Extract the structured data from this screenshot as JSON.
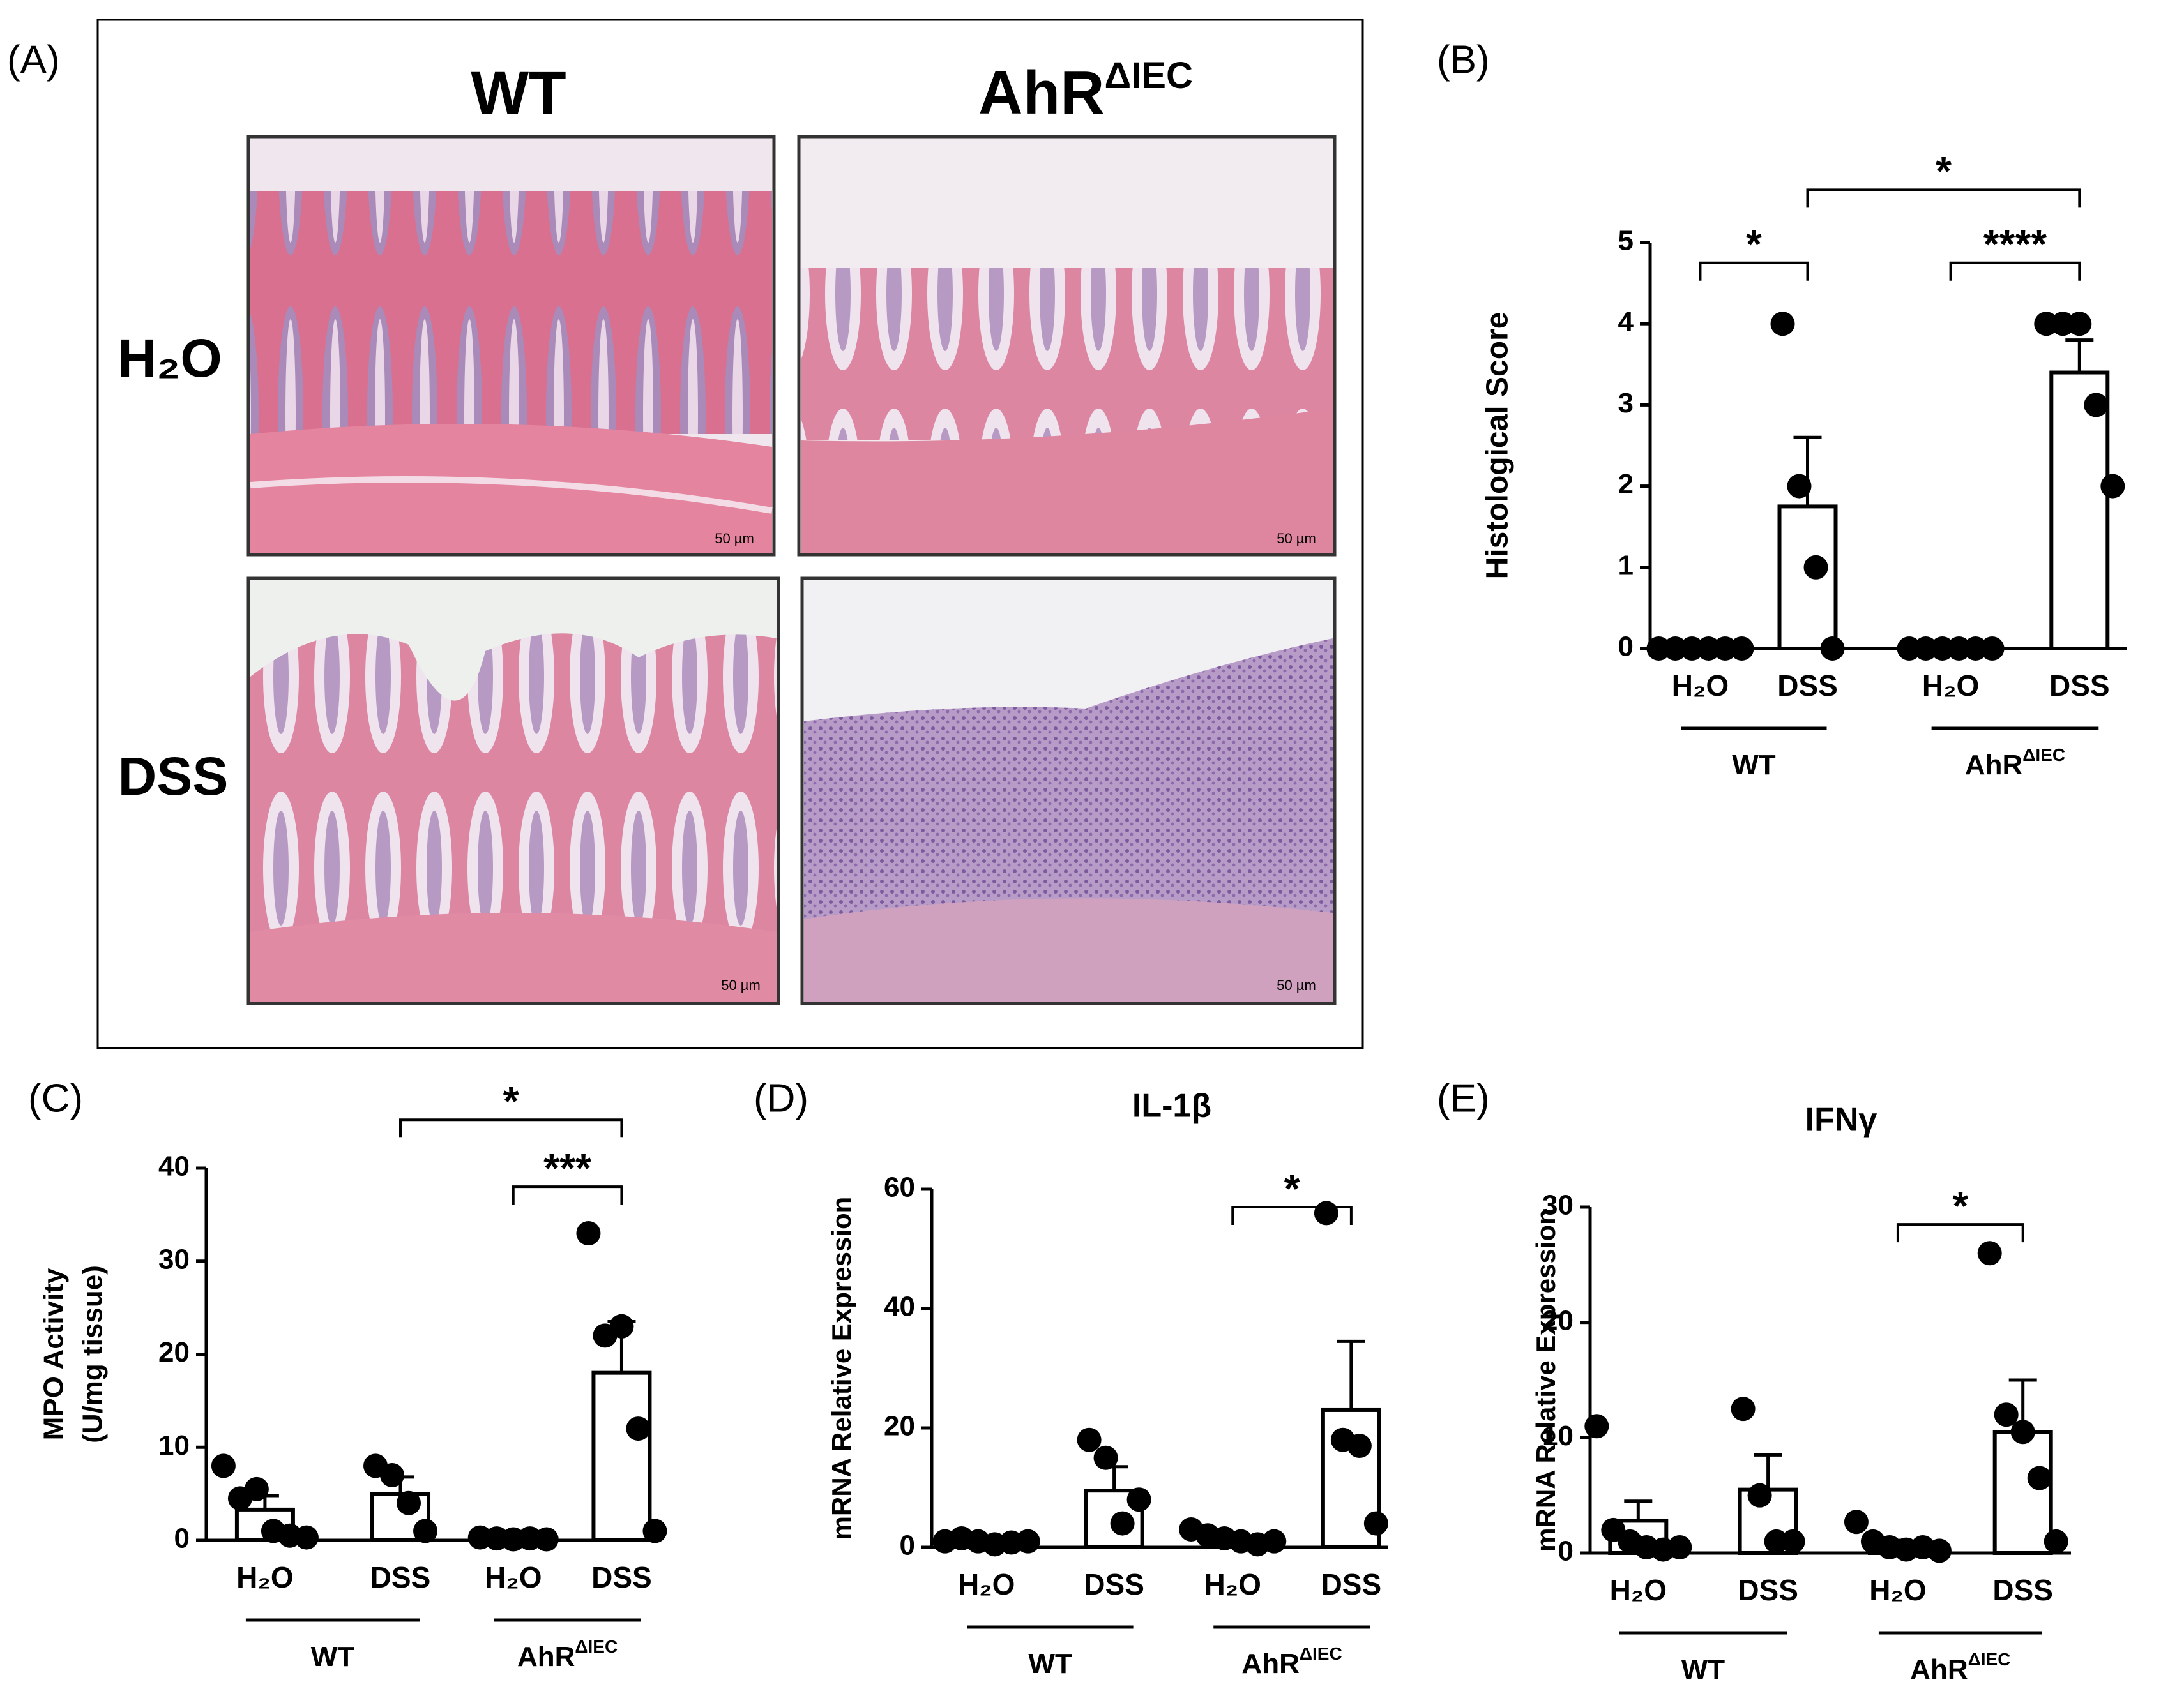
{
  "panel_a": {
    "label": "(A)",
    "columns": [
      "WT",
      {
        "main": "AhR",
        "sup": "ΔIEC"
      }
    ],
    "rows": [
      "H₂O",
      "DSS"
    ],
    "scale_bar": "50 µm"
  },
  "chart_data": [
    {
      "type": "bar",
      "panel_label": "(B)",
      "ylabel": "Histological Score",
      "categories": [
        "H₂O",
        "DSS",
        "H₂O",
        "DSS"
      ],
      "groups": [
        {
          "main": "WT"
        },
        {
          "main": "AhR",
          "sup": "ΔIEC"
        }
      ],
      "means": [
        0,
        1.75,
        0,
        3.4
      ],
      "errors": [
        0,
        0.85,
        0,
        0.4
      ],
      "points": [
        [
          0,
          0,
          0,
          0,
          0,
          0
        ],
        [
          4,
          2,
          1,
          0
        ],
        [
          0,
          0,
          0,
          0,
          0,
          0
        ],
        [
          4,
          4,
          4,
          3,
          2
        ]
      ],
      "ylim": [
        0,
        5
      ],
      "yticks": [
        0,
        1,
        2,
        3,
        4,
        5
      ],
      "significance": [
        {
          "label": "*",
          "from": 0,
          "to": 1
        },
        {
          "label": "****",
          "from": 2,
          "to": 3
        },
        {
          "label": "*",
          "from": 1,
          "to": 3
        }
      ]
    },
    {
      "type": "bar",
      "panel_label": "(C)",
      "ylabel": [
        "MPO Activity",
        "(U/mg tissue)"
      ],
      "categories": [
        "H₂O",
        "DSS",
        "H₂O",
        "DSS"
      ],
      "groups": [
        {
          "main": "WT"
        },
        {
          "main": "AhR",
          "sup": "ΔIEC"
        }
      ],
      "means": [
        3.3,
        5,
        0.2,
        18
      ],
      "errors": [
        1.5,
        1.8,
        0.1,
        5.5
      ],
      "points": [
        [
          8,
          4.5,
          5.5,
          1,
          0.5,
          0.3
        ],
        [
          8,
          7,
          4,
          1
        ],
        [
          0.3,
          0.2,
          0.1,
          0.2,
          0.1
        ],
        [
          33,
          22,
          23,
          12,
          1
        ]
      ],
      "ylim": [
        0,
        40
      ],
      "yticks": [
        0,
        10,
        20,
        30,
        40
      ],
      "significance": [
        {
          "label": "***",
          "from": 2,
          "to": 3
        },
        {
          "label": "*",
          "from": 1,
          "to": 3
        }
      ]
    },
    {
      "type": "bar",
      "panel_label": "(D)",
      "title": "IL-1β",
      "ylabel": "mRNA Relative Expression",
      "categories": [
        "H₂O",
        "DSS",
        "H₂O",
        "DSS"
      ],
      "groups": [
        {
          "main": "WT"
        },
        {
          "main": "AhR",
          "sup": "ΔIEC"
        }
      ],
      "means": [
        1,
        9.5,
        1.5,
        23
      ],
      "errors": [
        0.3,
        4,
        0.6,
        11.5
      ],
      "points": [
        [
          1,
          1.5,
          1,
          0.5,
          0.8,
          1
        ],
        [
          18,
          15,
          4,
          8
        ],
        [
          3,
          2,
          1.5,
          1,
          0.5,
          1
        ],
        [
          56,
          18,
          17,
          4
        ]
      ],
      "ylim": [
        0,
        60
      ],
      "yticks": [
        0,
        20,
        40,
        60
      ],
      "significance": [
        {
          "label": "*",
          "from": 2,
          "to": 3
        }
      ]
    },
    {
      "type": "bar",
      "panel_label": "(E)",
      "title": "IFNγ",
      "ylabel": "mRNA Relative Expression",
      "categories": [
        "H₂O",
        "DSS",
        "H₂O",
        "DSS"
      ],
      "groups": [
        {
          "main": "WT"
        },
        {
          "main": "AhR",
          "sup": "ΔIEC"
        }
      ],
      "means": [
        2.8,
        5.5,
        0.8,
        10.5
      ],
      "errors": [
        1.7,
        3,
        0.3,
        4.5
      ],
      "points": [
        [
          11,
          2,
          1,
          0.5,
          0.3,
          0.5
        ],
        [
          12.5,
          5,
          1,
          1
        ],
        [
          2.7,
          1,
          0.5,
          0.3,
          0.5,
          0.2
        ],
        [
          26,
          12,
          10.5,
          6.5,
          1
        ]
      ],
      "ylim": [
        0,
        30
      ],
      "yticks": [
        0,
        10,
        20,
        30
      ],
      "significance": [
        {
          "label": "*",
          "from": 2,
          "to": 3
        }
      ]
    }
  ]
}
